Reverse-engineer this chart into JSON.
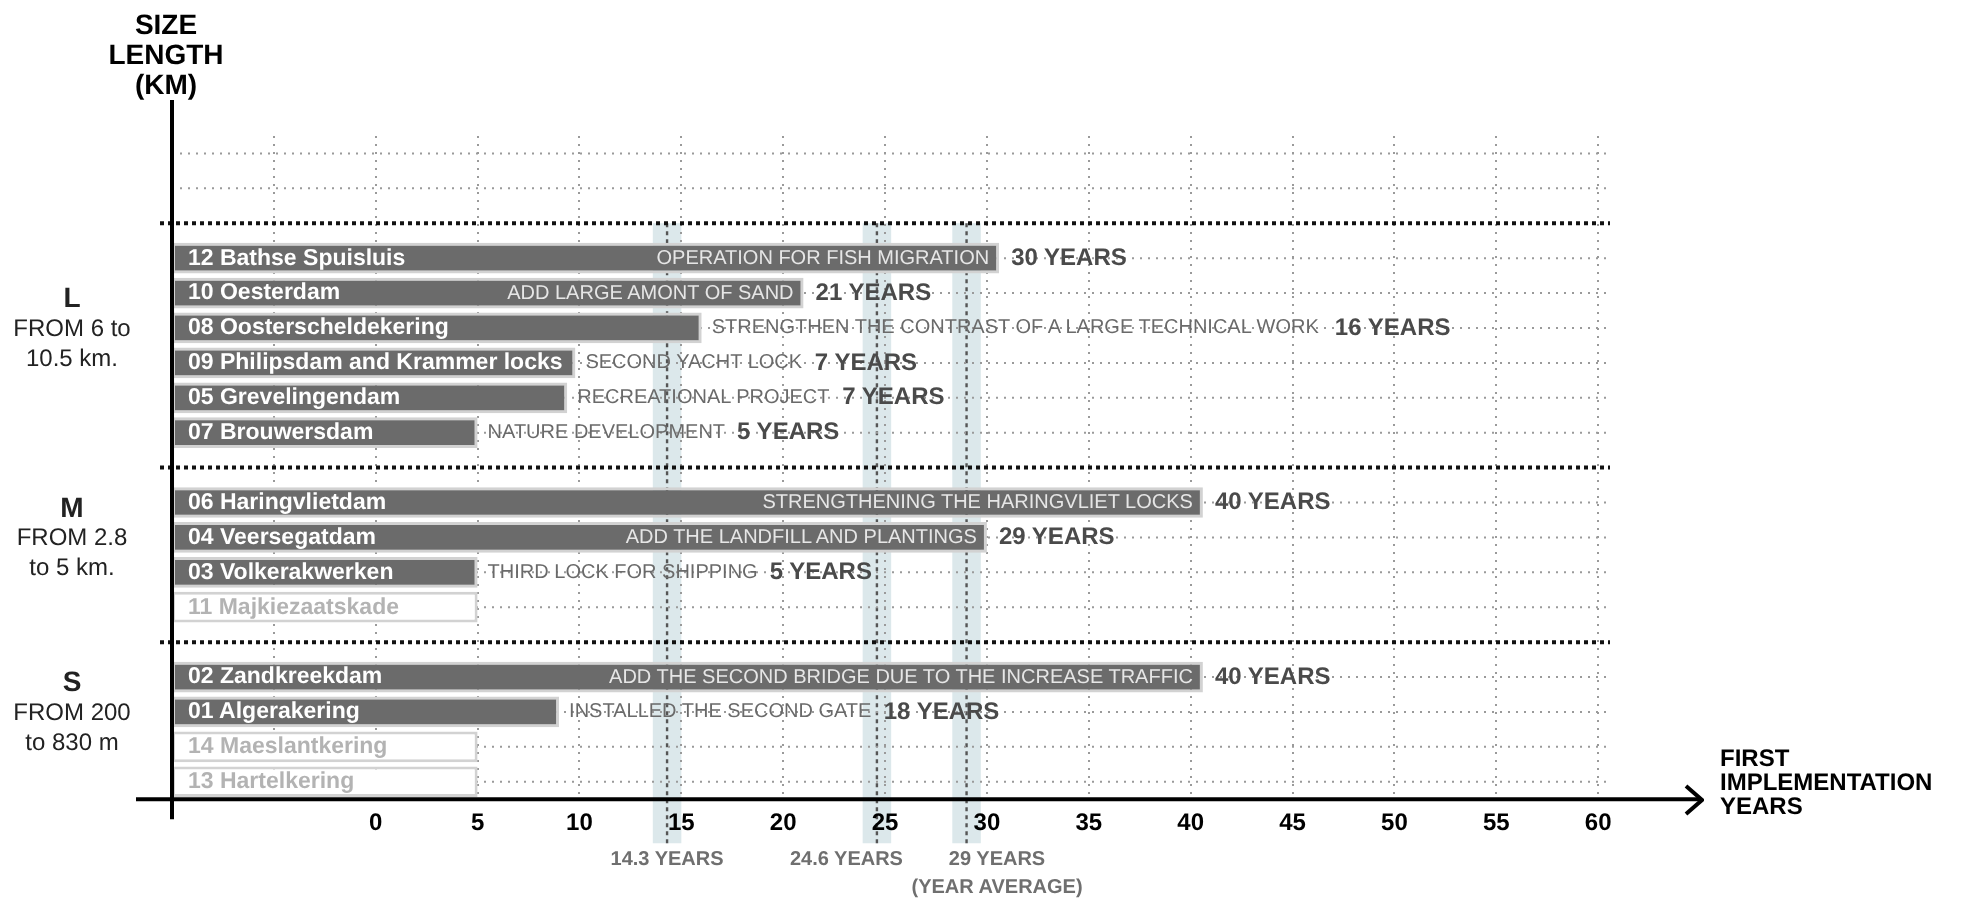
{
  "chart_data": {
    "type": "bar",
    "orientation": "horizontal",
    "ylabel": "SIZE\nLENGTH\n(KM)",
    "xlabel": "FIRST\nIMPLEMENTATION\nYEARS",
    "categories": [
      null,
      null,
      null,
      "12 Bathse Spuisluis",
      "10 Oesterdam",
      "08 Oosterscheldekering",
      "09 Philipsdam and Krammer locks",
      "05 Grevelingendam",
      "07 Brouwersdam",
      null,
      "06 Haringvlietdam",
      "04 Veersegatdam",
      "03 Volkerakwerken",
      "11 Majkiezaatskade",
      null,
      "02 Zandkreekdam",
      "01 Algerakering",
      "14 Maeslantkering",
      "13 Hartelkering"
    ],
    "values": [
      null,
      null,
      null,
      40.6,
      31,
      26,
      19.8,
      19.4,
      15,
      null,
      50.6,
      40,
      15,
      15,
      null,
      50.6,
      19,
      15,
      15
    ],
    "base": [
      null,
      null,
      null,
      -10,
      -10,
      -10,
      -10,
      -10,
      -10,
      null,
      -10,
      -10,
      -10,
      -10,
      null,
      -10,
      -10,
      -10,
      -10
    ],
    "colors": [
      "#6b6b6b",
      "#6b6b6b",
      "#6b6b6b",
      "#6b6b6b",
      "#6b6b6b",
      "#6b6b6b",
      "#6b6b6b",
      "#6b6b6b",
      "#6b6b6b",
      "#6b6b6b",
      "#6b6b6b",
      "#6b6b6b",
      "#6b6b6b",
      "#ffffff",
      "#6b6b6b",
      "#6b6b6b",
      "#6b6b6b",
      "#ffffff",
      "#ffffff"
    ],
    "xlim": [
      -10,
      65
    ],
    "xticks": [
      {
        "value": -5,
        "label": null
      },
      0,
      5,
      10,
      15,
      20,
      25,
      30,
      35,
      40,
      45,
      50,
      55,
      60
    ],
    "grid": true,
    "ref_lines": [
      {
        "axis": "x",
        "value": 14.3,
        "label": "14.3 YEARS",
        "color": "#555555",
        "line_style": "dotted"
      },
      {
        "axis": "x",
        "value": 24.6,
        "label": "24.6 YEARS",
        "color": "#555555",
        "line_style": "dotted"
      },
      {
        "axis": "x",
        "value": 29,
        "label": "29 YEARS\n(YEAR AVERAGE)",
        "color": "#555555",
        "line_style": "dotted"
      }
    ],
    "bands": [
      {
        "axis": "x",
        "from": 13.6,
        "to": 15,
        "color": "#dce8eb"
      },
      {
        "axis": "x",
        "from": 23.9,
        "to": 25.3,
        "color": "#dce8eb"
      },
      {
        "axis": "x",
        "from": 28.3,
        "to": 29.7,
        "color": "#dce8eb"
      }
    ],
    "annotations": [
      {
        "text": "OPERATION FOR FISH MIGRATION",
        "x": 30.6,
        "y": "12 Bathse Spuisluis"
      },
      "30 YEARS",
      {
        "text": "ADD LARGE AMONT OF SAND",
        "x": 21,
        "y": "10 Oesterdam"
      },
      "21 YEARS",
      {
        "text": "STRENGTHEN THE CONTRAST OF A LARGE TECHNICAL WORK",
        "x": 16,
        "y": "08 Oosterscheldekering"
      },
      "16 YEARS",
      {
        "text": "SECOND YACHT LOCK",
        "x": 9.8,
        "y": "09 Philipsdam and Krammer locks"
      },
      "7 YEARS",
      {
        "text": "RECREATIONAL PROJECT",
        "x": 9.4,
        "y": "05 Grevelingendam"
      },
      "7 YEARS",
      {
        "text": "NATURE DEVELOPMENT",
        "x": 5,
        "y": "07 Brouwersdam"
      },
      "5 YEARS",
      {
        "text": "STRENGTHENING THE HARINGVLIET LOCKS",
        "x": 40.6,
        "y": "06 Haringvlietdam"
      },
      "40 YEARS",
      {
        "text": "ADD THE LANDFILL AND PLANTINGS",
        "x": 30,
        "y": "04 Veersegatdam"
      },
      "29 YEARS",
      {
        "text": "THIRD LOCK FOR SHIPPING",
        "x": 5,
        "y": "03 Volkerakwerken"
      },
      "5 YEARS",
      {
        "text": "ADD THE SECOND BRIDGE DUE TO THE INCREASE TRAFFIC",
        "x": 40.6,
        "y": "02 Zandkreekdam"
      },
      "40 YEARS",
      {
        "text": "INSTALLED THE SECOND GATE",
        "x": 9,
        "y": "01 Algerakering"
      },
      "18 YEARS",
      "L\nFROM 6 to\n10.5 km.",
      "M\nFROM 2.8\nto 5 km.",
      "S\nFROM 200\nto 830 m"
    ]
  }
}
